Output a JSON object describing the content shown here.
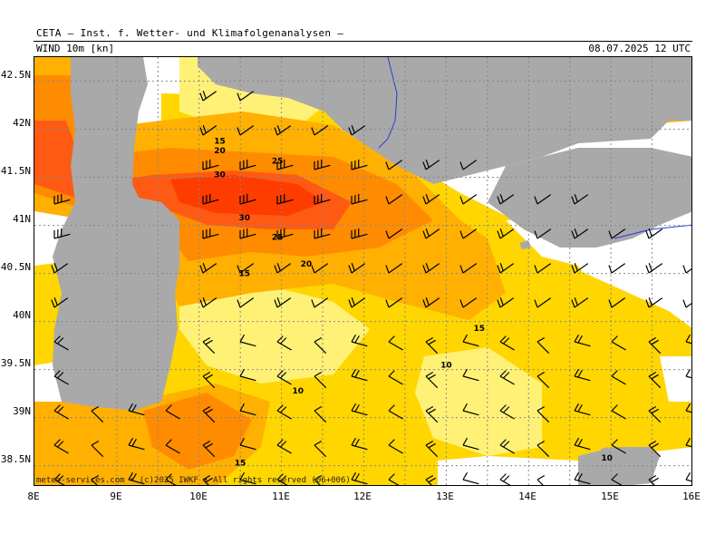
{
  "header": {
    "title": "CETA — Inst. f. Wetter- und Klimafolgenanalysen —",
    "parameter": "WIND 10m [kn]",
    "valid_time": "08.07.2025 12 UTC"
  },
  "credit": "meteo-services.com • (c)2025 IWKF • All rights reserved (06+006)",
  "axes": {
    "lat_labels": [
      "42.5N",
      "42N",
      "41.5N",
      "41N",
      "40.5N",
      "40N",
      "39.5N",
      "39N",
      "38.5N"
    ],
    "lon_labels": [
      "8E",
      "9E",
      "10E",
      "11E",
      "12E",
      "13E",
      "14E",
      "15E",
      "16E"
    ]
  },
  "colors": {
    "sea_white": "#ffffff",
    "land": "#a9a9a9",
    "wind_10_15": "#fff176",
    "wind_15_20": "#ffd600",
    "wind_20_25": "#ffb000",
    "wind_25_30": "#ff8c00",
    "wind_30_plus": "#ff5a14",
    "wind_35_plus": "#ff3c00",
    "low_wind": "#c8f5c8"
  },
  "contour_labels": [
    {
      "text": "15",
      "lon": 10.25,
      "lat": 41.88
    },
    {
      "text": "20",
      "lon": 10.25,
      "lat": 41.78
    },
    {
      "text": "25",
      "lon": 10.95,
      "lat": 41.67
    },
    {
      "text": "30",
      "lon": 10.25,
      "lat": 41.53
    },
    {
      "text": "30",
      "lon": 10.55,
      "lat": 41.08
    },
    {
      "text": "25",
      "lon": 10.95,
      "lat": 40.88
    },
    {
      "text": "20",
      "lon": 11.3,
      "lat": 40.6
    },
    {
      "text": "15",
      "lon": 10.55,
      "lat": 40.5
    },
    {
      "text": "15",
      "lon": 13.4,
      "lat": 39.93
    },
    {
      "text": "10",
      "lon": 13.0,
      "lat": 39.55
    },
    {
      "text": "10",
      "lon": 11.2,
      "lat": 39.28
    },
    {
      "text": "15",
      "lon": 10.5,
      "lat": 38.53
    },
    {
      "text": "10",
      "lon": 14.95,
      "lat": 38.58
    }
  ]
}
